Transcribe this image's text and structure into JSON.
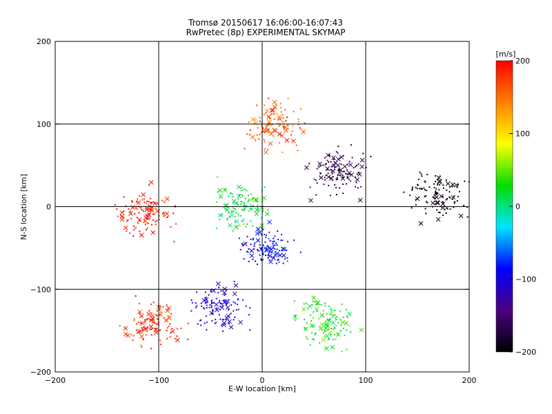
{
  "chart_data": {
    "type": "scatter",
    "title": "Tromsø 20150617 16:06:00-16:07:43",
    "subtitle": "RwPretec (8p) EXPERIMENTAL SKYMAP",
    "xlabel": "E-W location [km]",
    "ylabel": "N-S location [km]",
    "xlim": [
      -200,
      200
    ],
    "ylim": [
      -200,
      200
    ],
    "xticks": [
      -200,
      -100,
      0,
      100,
      200
    ],
    "yticks": [
      -200,
      -100,
      0,
      100,
      200
    ],
    "grid": true,
    "colorbar": {
      "label": "[m/s]",
      "range": [
        -200,
        200
      ],
      "ticks": [
        200,
        100,
        0,
        -100,
        -200
      ],
      "colors": [
        "#000000",
        "#4b0082",
        "#0000ff",
        "#00e5ff",
        "#00dd00",
        "#ffff00",
        "#ff8000",
        "#ff0000"
      ]
    },
    "markers": {
      "dot": "detection",
      "x": "detection"
    },
    "clusters": [
      {
        "x": -112,
        "y": -7,
        "value": 190
      },
      {
        "x": 10,
        "y": 98,
        "value": 160
      },
      {
        "x": -20,
        "y": 0,
        "value": 20
      },
      {
        "x": 5,
        "y": -50,
        "value": -90
      },
      {
        "x": -40,
        "y": -122,
        "value": -110
      },
      {
        "x": 75,
        "y": 40,
        "value": -170
      },
      {
        "x": 170,
        "y": 15,
        "value": -200
      },
      {
        "x": -105,
        "y": -140,
        "value": 180
      },
      {
        "x": 60,
        "y": -140,
        "value": 30
      }
    ]
  }
}
